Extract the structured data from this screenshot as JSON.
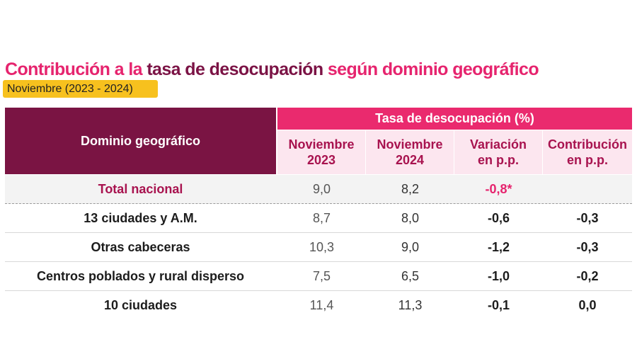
{
  "title": {
    "part1": "Contribución a la ",
    "part2": "tasa de desocupación",
    "part3": " según dominio geográfico"
  },
  "subtitle": "Noviembre (2023 - 2024)",
  "table": {
    "row_header": "Dominio geográfico",
    "group_header": "Tasa de desocupación (%)",
    "columns": [
      {
        "line1": "Noviembre",
        "line2": "2023"
      },
      {
        "line1": "Noviembre",
        "line2": "2024"
      },
      {
        "line1": "Variación",
        "line2": "en p.p."
      },
      {
        "line1": "Contribución",
        "line2": "en p.p."
      }
    ],
    "rows": [
      {
        "name": "Total nacional",
        "nov2023": "9,0",
        "nov2024": "8,2",
        "variacion": "-0,8*",
        "contribucion": ""
      },
      {
        "name": "13 ciudades y A.M.",
        "nov2023": "8,7",
        "nov2024": "8,0",
        "variacion": "-0,6",
        "contribucion": "-0,3"
      },
      {
        "name": "Otras cabeceras",
        "nov2023": "10,3",
        "nov2024": "9,0",
        "variacion": "-1,2",
        "contribucion": "-0,3"
      },
      {
        "name": "Centros poblados y rural disperso",
        "nov2023": "7,5",
        "nov2024": "6,5",
        "variacion": "-1,0",
        "contribucion": "-0,2"
      },
      {
        "name": "10 ciudades",
        "nov2023": "11,4",
        "nov2024": "11,3",
        "variacion": "-0,1",
        "contribucion": "0,0"
      }
    ]
  },
  "colors": {
    "accent_pink": "#e6246e",
    "header_wine": "#7a1443",
    "badge_yellow": "#f7c11e",
    "subheader_pink_bg": "#fce6ef"
  }
}
